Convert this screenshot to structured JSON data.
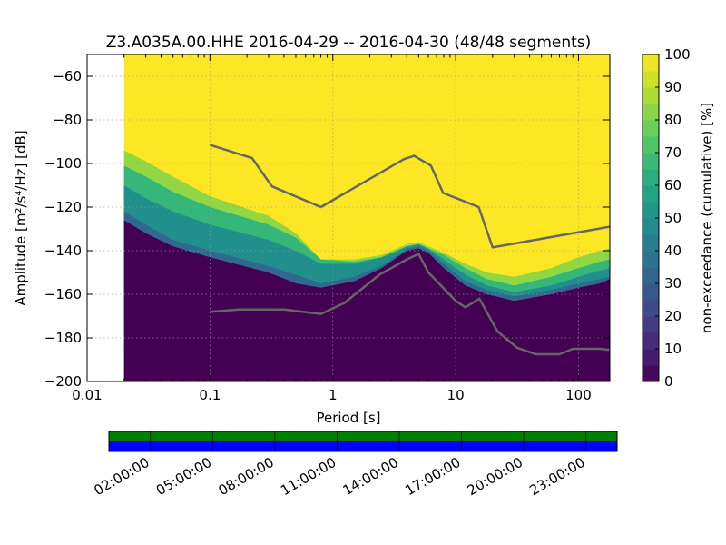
{
  "chart_data": [
    {
      "type": "heatmap",
      "title": "Z3.A035A.00.HHE   2016-04-29 -- 2016-04-30  (48/48 segments)",
      "xlabel": "Period [s]",
      "ylabel": "Amplitude [m²/s⁴/Hz] [dB]",
      "xscale": "log",
      "xlim": [
        0.01,
        180
      ],
      "ylim": [
        -200,
        -50
      ],
      "x_ticks": [
        0.01,
        0.1,
        1,
        10,
        100
      ],
      "x_tick_labels": [
        "0.01",
        "0.1",
        "1",
        "10",
        "100"
      ],
      "y_ticks": [
        -60,
        -80,
        -100,
        -120,
        -140,
        -160,
        -180,
        -200
      ],
      "y_tick_labels": [
        "−60",
        "−80",
        "−100",
        "−120",
        "−140",
        "−160",
        "−180",
        "−200"
      ],
      "grid": true,
      "data_start_period": 0.02,
      "colorbar": {
        "label": "non-exceedance (cumulative) [%]",
        "range": [
          0,
          100
        ],
        "ticks": [
          0,
          10,
          20,
          30,
          40,
          50,
          60,
          70,
          80,
          90,
          100
        ],
        "tick_labels": [
          "0",
          "10",
          "20",
          "30",
          "40",
          "50",
          "60",
          "70",
          "80",
          "90",
          "100"
        ],
        "colormap": "viridis"
      },
      "non_exceedance_bands": [
        {
          "percent": 0,
          "color": "#440154",
          "upper_db": [
            {
              "period": 0.02,
              "db": -126
            },
            {
              "period": 0.03,
              "db": -132
            },
            {
              "period": 0.05,
              "db": -138
            },
            {
              "period": 0.1,
              "db": -143
            },
            {
              "period": 0.3,
              "db": -150
            },
            {
              "period": 0.5,
              "db": -155
            },
            {
              "period": 0.8,
              "db": -157
            },
            {
              "period": 1.5,
              "db": -154
            },
            {
              "period": 2.5,
              "db": -148
            },
            {
              "period": 4,
              "db": -140
            },
            {
              "period": 5,
              "db": -139
            },
            {
              "period": 6,
              "db": -141
            },
            {
              "period": 8,
              "db": -148
            },
            {
              "period": 12,
              "db": -156
            },
            {
              "period": 18,
              "db": -160
            },
            {
              "period": 30,
              "db": -163
            },
            {
              "period": 60,
              "db": -160
            },
            {
              "period": 100,
              "db": -157
            },
            {
              "period": 150,
              "db": -155
            },
            {
              "period": 180,
              "db": -153
            }
          ]
        },
        {
          "percent": 20,
          "color": "#31688e",
          "upper_db": [
            {
              "period": 0.02,
              "db": -122
            },
            {
              "period": 0.03,
              "db": -128
            },
            {
              "period": 0.05,
              "db": -135
            },
            {
              "period": 0.1,
              "db": -140
            },
            {
              "period": 0.3,
              "db": -147
            },
            {
              "period": 0.5,
              "db": -151
            },
            {
              "period": 0.8,
              "db": -155
            },
            {
              "period": 1.5,
              "db": -152
            },
            {
              "period": 2.5,
              "db": -147
            },
            {
              "period": 4,
              "db": -139
            },
            {
              "period": 5,
              "db": -138
            },
            {
              "period": 6,
              "db": -140
            },
            {
              "period": 8,
              "db": -146
            },
            {
              "period": 12,
              "db": -154
            },
            {
              "period": 18,
              "db": -158
            },
            {
              "period": 30,
              "db": -161
            },
            {
              "period": 60,
              "db": -158
            },
            {
              "period": 100,
              "db": -155
            },
            {
              "period": 150,
              "db": -153
            },
            {
              "period": 180,
              "db": -152
            }
          ]
        },
        {
          "percent": 60,
          "color": "#21908d",
          "upper_db": [
            {
              "period": 0.02,
              "db": -110
            },
            {
              "period": 0.03,
              "db": -116
            },
            {
              "period": 0.05,
              "db": -122
            },
            {
              "period": 0.1,
              "db": -128
            },
            {
              "period": 0.3,
              "db": -135
            },
            {
              "period": 0.5,
              "db": -140
            },
            {
              "period": 0.8,
              "db": -146
            },
            {
              "period": 1.5,
              "db": -146
            },
            {
              "period": 2.5,
              "db": -143
            },
            {
              "period": 4,
              "db": -138
            },
            {
              "period": 5,
              "db": -137
            },
            {
              "period": 6,
              "db": -139
            },
            {
              "period": 8,
              "db": -144
            },
            {
              "period": 12,
              "db": -151
            },
            {
              "period": 18,
              "db": -156
            },
            {
              "period": 30,
              "db": -159
            },
            {
              "period": 60,
              "db": -156
            },
            {
              "period": 100,
              "db": -152
            },
            {
              "period": 150,
              "db": -149
            },
            {
              "period": 180,
              "db": -148
            }
          ]
        },
        {
          "percent": 70,
          "color": "#35b779",
          "upper_db": [
            {
              "period": 0.02,
              "db": -101
            },
            {
              "period": 0.03,
              "db": -106
            },
            {
              "period": 0.05,
              "db": -113
            },
            {
              "period": 0.1,
              "db": -120
            },
            {
              "period": 0.3,
              "db": -128
            },
            {
              "period": 0.5,
              "db": -134
            },
            {
              "period": 0.8,
              "db": -144
            },
            {
              "period": 1.5,
              "db": -145
            },
            {
              "period": 2.5,
              "db": -143
            },
            {
              "period": 4,
              "db": -138
            },
            {
              "period": 5,
              "db": -137
            },
            {
              "period": 6,
              "db": -139
            },
            {
              "period": 8,
              "db": -142
            },
            {
              "period": 12,
              "db": -148
            },
            {
              "period": 18,
              "db": -153
            },
            {
              "period": 30,
              "db": -156
            },
            {
              "period": 60,
              "db": -152
            },
            {
              "period": 100,
              "db": -148
            },
            {
              "period": 150,
              "db": -145
            },
            {
              "period": 180,
              "db": -144
            }
          ]
        },
        {
          "percent": 80,
          "color": "#90d743",
          "upper_db": [
            {
              "period": 0.02,
              "db": -94
            },
            {
              "period": 0.03,
              "db": -99
            },
            {
              "period": 0.05,
              "db": -106
            },
            {
              "period": 0.1,
              "db": -115
            },
            {
              "period": 0.3,
              "db": -124
            },
            {
              "period": 0.5,
              "db": -132
            },
            {
              "period": 0.8,
              "db": -144
            },
            {
              "period": 1.5,
              "db": -144
            },
            {
              "period": 2.5,
              "db": -142
            },
            {
              "period": 4,
              "db": -137
            },
            {
              "period": 5,
              "db": -136
            },
            {
              "period": 6,
              "db": -138
            },
            {
              "period": 8,
              "db": -141
            },
            {
              "period": 12,
              "db": -146
            },
            {
              "period": 18,
              "db": -150
            },
            {
              "period": 30,
              "db": -152
            },
            {
              "period": 60,
              "db": -148
            },
            {
              "period": 100,
              "db": -143
            },
            {
              "period": 150,
              "db": -140
            },
            {
              "period": 180,
              "db": -139
            }
          ]
        }
      ],
      "background_color": "#fde725",
      "series": [
        {
          "name": "",
          "color": "#666666",
          "points": [
            {
              "period": 0.1,
              "db": -91.5
            },
            {
              "period": 0.22,
              "db": -97.5
            },
            {
              "period": 0.32,
              "db": -110.5
            },
            {
              "period": 0.8,
              "db": -120
            },
            {
              "period": 3.8,
              "db": -98
            },
            {
              "period": 4.6,
              "db": -96.5
            },
            {
              "period": 6.3,
              "db": -101
            },
            {
              "period": 7.9,
              "db": -113.5
            },
            {
              "period": 15.4,
              "db": -120
            },
            {
              "period": 20,
              "db": -138.5
            },
            {
              "period": 180,
              "db": -129
            }
          ]
        },
        {
          "name": "",
          "color": "#666666",
          "points": [
            {
              "period": 0.1,
              "db": -168
            },
            {
              "period": 0.17,
              "db": -167
            },
            {
              "period": 0.4,
              "db": -167
            },
            {
              "period": 0.8,
              "db": -169
            },
            {
              "period": 1.24,
              "db": -164
            },
            {
              "period": 2.4,
              "db": -151
            },
            {
              "period": 4,
              "db": -144
            },
            {
              "period": 5,
              "db": -141.5
            },
            {
              "period": 6,
              "db": -150
            },
            {
              "period": 10,
              "db": -163
            },
            {
              "period": 12,
              "db": -166
            },
            {
              "period": 15.6,
              "db": -162
            },
            {
              "period": 21.9,
              "db": -177
            },
            {
              "period": 31.6,
              "db": -184.5
            },
            {
              "period": 45,
              "db": -187.5
            },
            {
              "period": 70,
              "db": -187.5
            },
            {
              "period": 90,
              "db": -185
            },
            {
              "period": 150,
              "db": -185
            },
            {
              "period": 180,
              "db": -185.5
            }
          ]
        }
      ]
    },
    {
      "type": "bar",
      "tick_labels": [
        "02:00:00",
        "05:00:00",
        "08:00:00",
        "11:00:00",
        "14:00:00",
        "17:00:00",
        "20:00:00",
        "23:00:00"
      ],
      "tick_hours": [
        2,
        5,
        8,
        11,
        14,
        17,
        20,
        23
      ],
      "range_hours": [
        0,
        24.5
      ],
      "top_strip_color": "#007f00",
      "bottom_strip_color": "#0000ff"
    }
  ]
}
